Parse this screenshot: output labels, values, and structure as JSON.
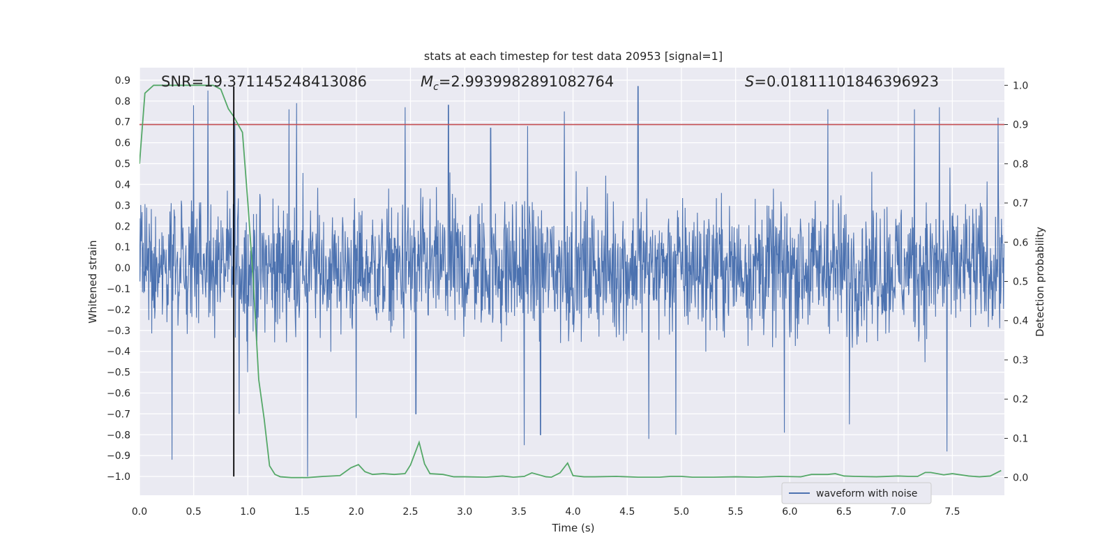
{
  "chart_data": {
    "type": "line",
    "title": "stats at each timestep for test data 20953 [signal=1]",
    "xlabel": "Time (s)",
    "ylabel_left": "Whitened strain",
    "ylabel_right": "Detection probability",
    "xlim": [
      0.0,
      7.98
    ],
    "ylim_left": [
      -1.09,
      0.96
    ],
    "ylim_right": [
      -0.045,
      1.045
    ],
    "grid": true,
    "legend_position": "bottom-right",
    "x_ticks": [
      "0.0",
      "0.5",
      "1.0",
      "1.5",
      "2.0",
      "2.5",
      "3.0",
      "3.5",
      "4.0",
      "4.5",
      "5.0",
      "5.5",
      "6.0",
      "6.5",
      "7.0",
      "7.5"
    ],
    "y_ticks_left": [
      "0.9",
      "0.8",
      "0.7",
      "0.6",
      "0.5",
      "0.4",
      "0.3",
      "0.2",
      "0.1",
      "0.0",
      "−0.1",
      "−0.2",
      "−0.3",
      "−0.4",
      "−0.5",
      "−0.6",
      "−0.7",
      "−0.8",
      "−0.9",
      "−1.0"
    ],
    "y_ticks_right": [
      "1.0",
      "0.9",
      "0.8",
      "0.7",
      "0.6",
      "0.5",
      "0.4",
      "0.3",
      "0.2",
      "0.1",
      "0.0"
    ],
    "annotations": {
      "snr_text": "SNR=19.371145248413086",
      "mc_symbol": "M",
      "mc_subscript": "c",
      "mc_value": "=2.9939982891082764",
      "s_symbol": "S",
      "s_value": "=0.01811101846396923"
    },
    "threshold_value": 0.9,
    "marker_time": 0.87,
    "series": [
      {
        "name": "waveform with noise",
        "axis": "left",
        "color": "#4c72b0",
        "samples": 2048,
        "amplitude_core": 0.3,
        "max": 0.87,
        "min": -1.0,
        "peaks": [
          {
            "t": 0.5,
            "v": 0.78
          },
          {
            "t": 0.63,
            "v": 0.85
          },
          {
            "t": 0.88,
            "v": 0.7
          },
          {
            "t": 1.38,
            "v": 0.76
          },
          {
            "t": 1.45,
            "v": 0.79
          },
          {
            "t": 2.45,
            "v": 0.77
          },
          {
            "t": 2.85,
            "v": 0.78
          },
          {
            "t": 3.24,
            "v": 0.67
          },
          {
            "t": 3.58,
            "v": 0.68
          },
          {
            "t": 3.92,
            "v": 0.75
          },
          {
            "t": 4.6,
            "v": 0.87
          },
          {
            "t": 6.35,
            "v": 0.76
          },
          {
            "t": 7.15,
            "v": 0.76
          },
          {
            "t": 7.38,
            "v": 0.77
          },
          {
            "t": 7.92,
            "v": 0.72
          }
        ],
        "troughs": [
          {
            "t": 0.3,
            "v": -0.92
          },
          {
            "t": 1.55,
            "v": -1.0
          },
          {
            "t": 3.55,
            "v": -0.85
          },
          {
            "t": 3.7,
            "v": -0.8
          },
          {
            "t": 4.7,
            "v": -0.82
          },
          {
            "t": 4.95,
            "v": -0.8
          },
          {
            "t": 5.95,
            "v": -0.79
          },
          {
            "t": 7.45,
            "v": -0.88
          },
          {
            "t": 0.92,
            "v": -0.7
          },
          {
            "t": 2.0,
            "v": -0.72
          },
          {
            "t": 2.55,
            "v": -0.7
          },
          {
            "t": 6.55,
            "v": -0.75
          }
        ]
      },
      {
        "name": "detection probability",
        "axis": "right",
        "color": "#55a868",
        "x": [
          0.0,
          0.05,
          0.13,
          0.2,
          0.3,
          0.45,
          0.6,
          0.68,
          0.75,
          0.82,
          0.87,
          0.95,
          1.0,
          1.05,
          1.1,
          1.15,
          1.2,
          1.25,
          1.3,
          1.4,
          1.55,
          1.7,
          1.85,
          1.95,
          2.02,
          2.08,
          2.15,
          2.25,
          2.35,
          2.45,
          2.5,
          2.58,
          2.63,
          2.68,
          2.8,
          2.9,
          3.0,
          3.2,
          3.35,
          3.45,
          3.55,
          3.62,
          3.75,
          3.8,
          3.88,
          3.95,
          4.0,
          4.1,
          4.2,
          4.4,
          4.6,
          4.8,
          4.9,
          5.0,
          5.1,
          5.3,
          5.5,
          5.7,
          5.9,
          6.1,
          6.2,
          6.35,
          6.42,
          6.5,
          6.6,
          6.8,
          7.0,
          7.1,
          7.18,
          7.25,
          7.3,
          7.42,
          7.5,
          7.65,
          7.75,
          7.85,
          7.95
        ],
        "y": [
          0.8,
          0.98,
          1.0,
          1.0,
          1.0,
          1.0,
          1.0,
          1.0,
          0.99,
          0.94,
          0.92,
          0.88,
          0.7,
          0.5,
          0.25,
          0.15,
          0.03,
          0.008,
          0.002,
          0.0,
          0.0,
          0.003,
          0.005,
          0.025,
          0.033,
          0.015,
          0.008,
          0.01,
          0.008,
          0.01,
          0.032,
          0.09,
          0.035,
          0.01,
          0.008,
          0.002,
          0.002,
          0.001,
          0.004,
          0.001,
          0.003,
          0.012,
          0.002,
          0.001,
          0.012,
          0.037,
          0.005,
          0.002,
          0.002,
          0.003,
          0.001,
          0.001,
          0.003,
          0.003,
          0.001,
          0.001,
          0.002,
          0.001,
          0.003,
          0.002,
          0.008,
          0.008,
          0.01,
          0.004,
          0.003,
          0.002,
          0.004,
          0.003,
          0.003,
          0.013,
          0.013,
          0.007,
          0.01,
          0.004,
          0.002,
          0.004,
          0.018
        ]
      },
      {
        "name": "threshold",
        "axis": "right",
        "color": "#c44e52",
        "value": 0.9
      },
      {
        "name": "marker line",
        "axis": "left",
        "color": "#000000",
        "x": 0.87,
        "y_range": [
          -1.0,
          0.87
        ]
      }
    ]
  }
}
